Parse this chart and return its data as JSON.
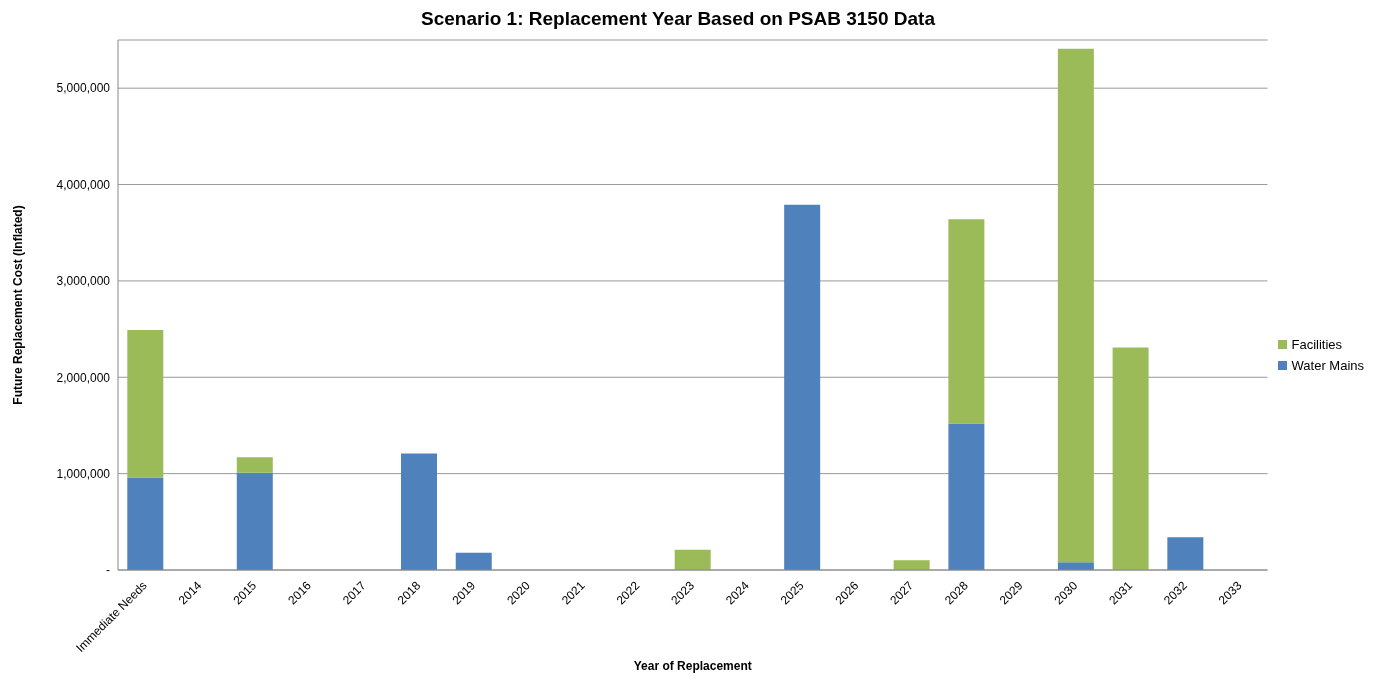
{
  "chart_data": {
    "type": "bar",
    "title": "Scenario 1: Replacement Year Based on PSAB 3150 Data",
    "xlabel": "Year of Replacement",
    "ylabel": "Future Replacement Cost (Inflated)",
    "categories": [
      "Immediate Needs",
      "2014",
      "2015",
      "2016",
      "2017",
      "2018",
      "2019",
      "2020",
      "2021",
      "2022",
      "2023",
      "2024",
      "2025",
      "2026",
      "2027",
      "2028",
      "2029",
      "2030",
      "2031",
      "2032",
      "2033"
    ],
    "stacked": true,
    "series": [
      {
        "name": "Water Mains",
        "color": "#4f81bd",
        "values": [
          960000,
          0,
          1010000,
          0,
          0,
          1210000,
          180000,
          0,
          0,
          0,
          0,
          0,
          3790000,
          0,
          0,
          1520000,
          0,
          80000,
          0,
          340000,
          0
        ]
      },
      {
        "name": "Facilities",
        "color": "#9bbb59",
        "values": [
          1530000,
          0,
          160000,
          0,
          0,
          0,
          0,
          0,
          0,
          0,
          210000,
          0,
          0,
          0,
          100000,
          2120000,
          0,
          5330000,
          2310000,
          0,
          0
        ]
      }
    ],
    "ylim": [
      0,
      5500000
    ],
    "yticks": [
      {
        "value": 0,
        "label": "-"
      },
      {
        "value": 1000000,
        "label": "1,000,000"
      },
      {
        "value": 2000000,
        "label": "2,000,000"
      },
      {
        "value": 3000000,
        "label": "3,000,000"
      },
      {
        "value": 4000000,
        "label": "4,000,000"
      },
      {
        "value": 5000000,
        "label": "5,000,000"
      }
    ],
    "grid": "y",
    "legend": "right"
  }
}
